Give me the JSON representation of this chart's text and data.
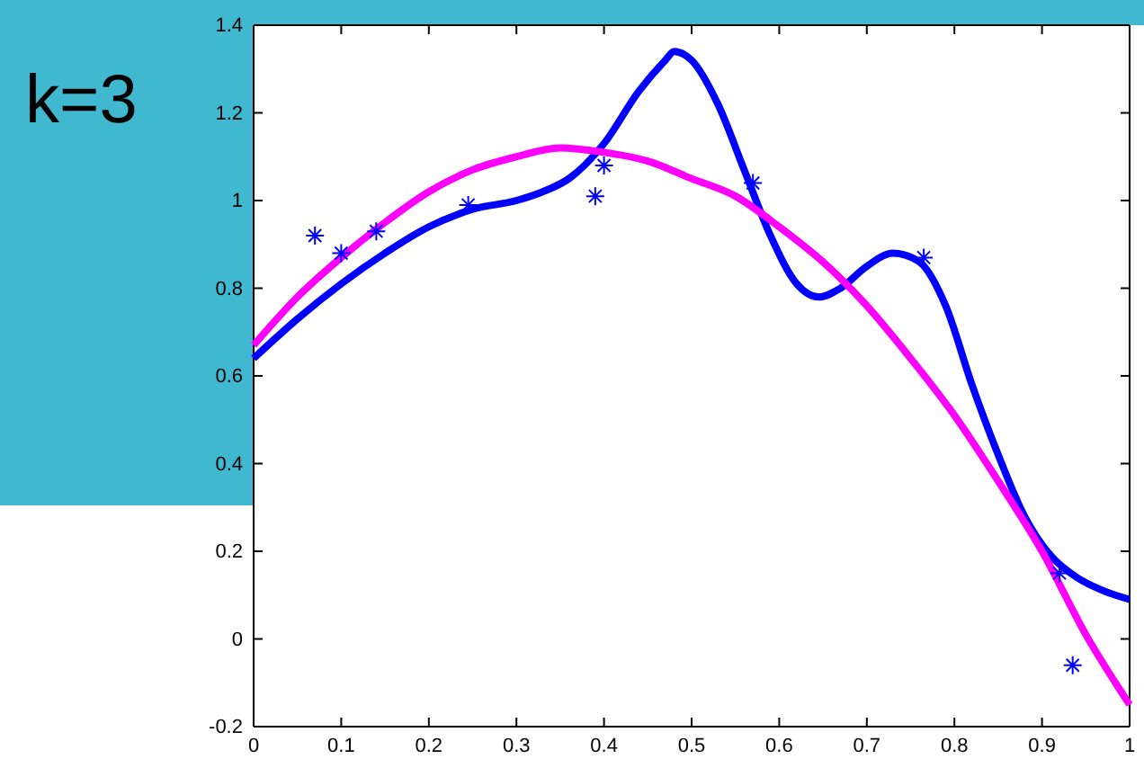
{
  "chart_data": {
    "type": "line",
    "annotations": [
      "k=3"
    ],
    "xlim": [
      0,
      1
    ],
    "ylim": [
      -0.2,
      1.4
    ],
    "xticks": [
      0,
      0.1,
      0.2,
      0.3,
      0.4,
      0.5,
      0.6,
      0.7,
      0.8,
      0.9,
      1
    ],
    "yticks": [
      -0.2,
      0,
      0.2,
      0.4,
      0.6,
      0.8,
      1,
      1.2,
      1.4
    ],
    "grid": false,
    "line_style": "solid",
    "series": [
      {
        "type": "scatter",
        "marker": "cross",
        "color": "#0000ff",
        "x": [
          0.07,
          0.1,
          0.14,
          0.245,
          0.39,
          0.4,
          0.57,
          0.765,
          0.92,
          0.935
        ],
        "values": [
          0.92,
          0.88,
          0.93,
          0.99,
          1.01,
          1.08,
          1.04,
          0.87,
          0.15,
          -0.06
        ]
      },
      {
        "color": "#0000ff",
        "x": [
          0,
          0.05,
          0.1,
          0.15,
          0.2,
          0.25,
          0.3,
          0.33,
          0.36,
          0.4,
          0.44,
          0.47,
          0.48,
          0.5,
          0.53,
          0.56,
          0.59,
          0.62,
          0.645,
          0.67,
          0.7,
          0.73,
          0.76,
          0.79,
          0.82,
          0.85,
          0.88,
          0.91,
          0.94,
          0.97,
          1
        ],
        "values": [
          0.64,
          0.73,
          0.81,
          0.88,
          0.94,
          0.98,
          1.0,
          1.02,
          1.05,
          1.13,
          1.25,
          1.32,
          1.34,
          1.32,
          1.22,
          1.07,
          0.92,
          0.81,
          0.78,
          0.8,
          0.85,
          0.88,
          0.86,
          0.76,
          0.58,
          0.42,
          0.28,
          0.19,
          0.14,
          0.11,
          0.09
        ]
      },
      {
        "color": "#ff00ff",
        "x": [
          0,
          0.05,
          0.1,
          0.15,
          0.2,
          0.25,
          0.3,
          0.35,
          0.4,
          0.45,
          0.5,
          0.55,
          0.6,
          0.65,
          0.7,
          0.75,
          0.8,
          0.85,
          0.9,
          0.95,
          1
        ],
        "values": [
          0.67,
          0.78,
          0.87,
          0.95,
          1.02,
          1.07,
          1.1,
          1.12,
          1.11,
          1.09,
          1.05,
          1.01,
          0.94,
          0.86,
          0.76,
          0.64,
          0.51,
          0.36,
          0.2,
          0.01,
          -0.15
        ]
      }
    ]
  }
}
